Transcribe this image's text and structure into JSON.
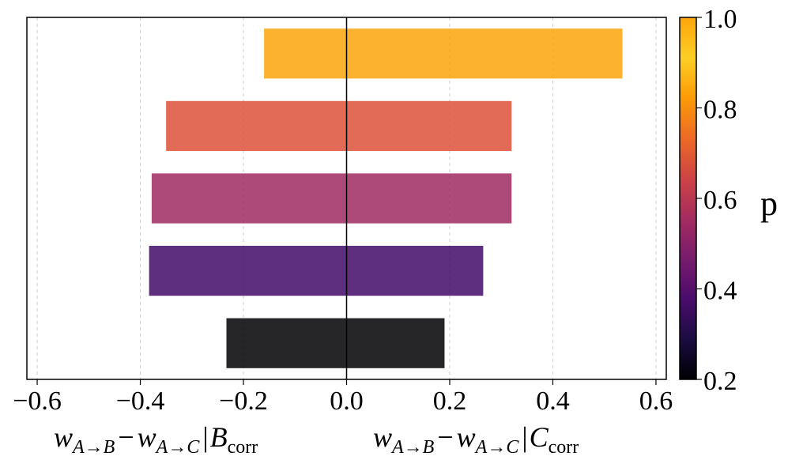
{
  "chart_data": {
    "type": "bar",
    "orientation": "horizontal-diverging",
    "xlim": [
      -0.62,
      0.62
    ],
    "xticks": [
      -0.6,
      -0.4,
      -0.2,
      0.0,
      0.2,
      0.4,
      0.6
    ],
    "xtick_labels": [
      "−0.6",
      "−0.4",
      "−0.2",
      "0.0",
      "0.2",
      "0.4",
      "0.6"
    ],
    "grid": true,
    "xlabel_left": "w_{A→B} − w_{A→C} | B_corr",
    "xlabel_right": "w_{A→B} − w_{A→C} | C_corr",
    "xlabel_left_text": {
      "w": "w",
      "sub1": "A→B",
      "minus": "−",
      "sub2": "A→C",
      "bar": "|",
      "base": "B",
      "sub": "corr"
    },
    "xlabel_right_text": {
      "w": "w",
      "sub1": "A→B",
      "minus": "−",
      "sub2": "A→C",
      "bar": "|",
      "base": "C",
      "sub": "corr"
    },
    "rows": [
      {
        "p": 1.0,
        "left": -0.16,
        "right": 0.535,
        "color": "#fca50a"
      },
      {
        "p": 0.8,
        "left": -0.35,
        "right": 0.32,
        "color": "#dd513a"
      },
      {
        "p": 0.6,
        "left": -0.378,
        "right": 0.32,
        "color": "#9f2a63"
      },
      {
        "p": 0.4,
        "left": -0.383,
        "right": 0.265,
        "color": "#420a68"
      },
      {
        "p": 0.2,
        "left": -0.233,
        "right": 0.19,
        "color": "#000004"
      }
    ],
    "colorbar": {
      "label": "p",
      "range": [
        0.2,
        1.0
      ],
      "ticks": [
        0.2,
        0.4,
        0.6,
        0.8,
        1.0
      ],
      "tick_labels": [
        "0.2",
        "0.4",
        "0.6",
        "0.8",
        "1.0"
      ],
      "colormap": "inferno",
      "stops": [
        "#000004",
        "#1b0c41",
        "#4a0c6b",
        "#781c6d",
        "#a52c60",
        "#cf4446",
        "#ed6925",
        "#fb9b06",
        "#fcce25",
        "#fca50a"
      ]
    }
  }
}
